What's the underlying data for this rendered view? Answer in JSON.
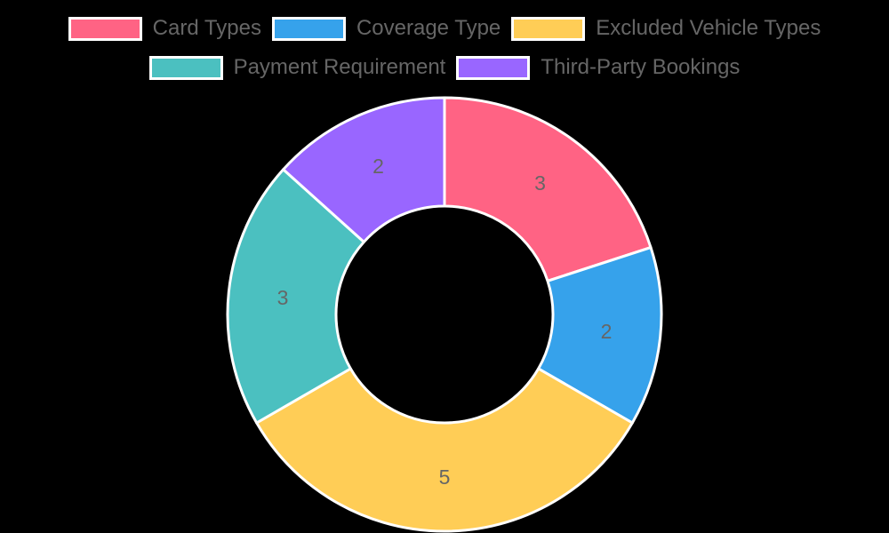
{
  "chart_data": {
    "type": "doughnut",
    "title": "",
    "categories": [
      "Card Types",
      "Coverage Type",
      "Excluded Vehicle Types",
      "Payment Requirement",
      "Third-Party Bookings"
    ],
    "values": [
      3,
      2,
      5,
      3,
      2
    ],
    "colors": [
      "#ff6384",
      "#36a2eb",
      "#ffcd56",
      "#4bc0c0",
      "#9966ff"
    ],
    "data_labels": [
      "3",
      "2",
      "5",
      "3",
      "2"
    ],
    "legend_position": "top",
    "border_color": "#ffffff",
    "center": [
      500,
      354
    ],
    "outer_radius": 244,
    "inner_radius": 122
  },
  "legend": {
    "rows": [
      [
        {
          "label": "Card Types",
          "color": "#ff6384"
        },
        {
          "label": "Coverage Type",
          "color": "#36a2eb"
        },
        {
          "label": "Excluded Vehicle Types",
          "color": "#ffcd56"
        }
      ],
      [
        {
          "label": "Payment Requirement",
          "color": "#4bc0c0"
        },
        {
          "label": "Third-Party Bookings",
          "color": "#9966ff"
        }
      ]
    ]
  }
}
